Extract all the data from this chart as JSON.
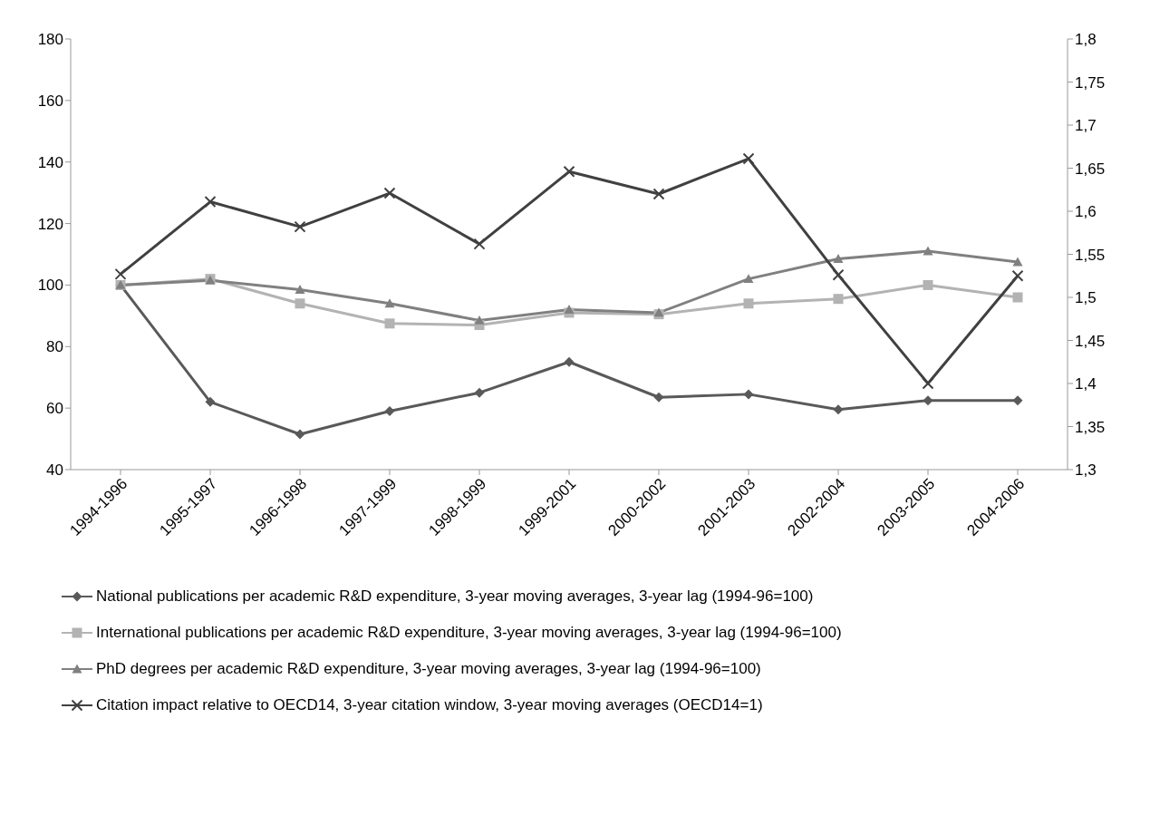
{
  "chart_data": {
    "type": "line",
    "categories": [
      "1994-1996",
      "1995-1997",
      "1996-1998",
      "1997-1999",
      "1998-1999",
      "1999-2001",
      "2000-2002",
      "2001-2003",
      "2002-2004",
      "2003-2005",
      "2004-2006"
    ],
    "series": [
      {
        "name": "National publications per academic R&D expenditure, 3-year moving averages, 3-year lag (1994-96=100)",
        "color": "#595959",
        "marker": "diamond",
        "values": [
          100,
          62,
          51.5,
          59,
          65,
          75,
          63.5,
          64.5,
          59.5,
          62.5,
          62.5
        ]
      },
      {
        "name": "International publications per academic R&D expenditure, 3-year moving averages, 3-year lag (1994-96=100)",
        "color": "#b3b3b3",
        "marker": "square",
        "values": [
          100,
          102,
          94,
          87.5,
          87,
          91,
          90.5,
          94,
          95.5,
          100,
          96
        ]
      },
      {
        "name": "PhD degrees per academic R&D expenditure, 3-year moving averages, 3-year lag (1994-96=100)",
        "color": "#808080",
        "marker": "triangle",
        "values": [
          100,
          101.5,
          98.5,
          94,
          88.5,
          92,
          91,
          102,
          108.5,
          111,
          107.5
        ]
      },
      {
        "name": "Citation impact relative to OECD14, 3-year citation window, 3-year moving averages (OECD14=1)",
        "color": "#404040",
        "marker": "cross",
        "axis": "y2",
        "values": [
          1.527,
          1.611,
          1.582,
          1.621,
          1.562,
          1.646,
          1.62,
          1.661,
          1.526,
          1.4,
          1.525
        ]
      }
    ],
    "ylim": [
      40,
      180
    ],
    "yticks": [
      40,
      60,
      80,
      100,
      120,
      140,
      160,
      180
    ],
    "y2lim": [
      1.3,
      1.8
    ],
    "y2ticks": [
      {
        "value": 1.3,
        "label": "1,3"
      },
      {
        "value": 1.35,
        "label": "1,35"
      },
      {
        "value": 1.4,
        "label": "1,4"
      },
      {
        "value": 1.45,
        "label": "1,45"
      },
      {
        "value": 1.5,
        "label": "1,5"
      },
      {
        "value": 1.55,
        "label": "1,55"
      },
      {
        "value": 1.6,
        "label": "1,6"
      },
      {
        "value": 1.65,
        "label": "1,65"
      },
      {
        "value": 1.7,
        "label": "1,7"
      },
      {
        "value": 1.75,
        "label": "1,75"
      },
      {
        "value": 1.8,
        "label": "1,8"
      }
    ],
    "legend": "bottom",
    "line_style": "solid"
  }
}
